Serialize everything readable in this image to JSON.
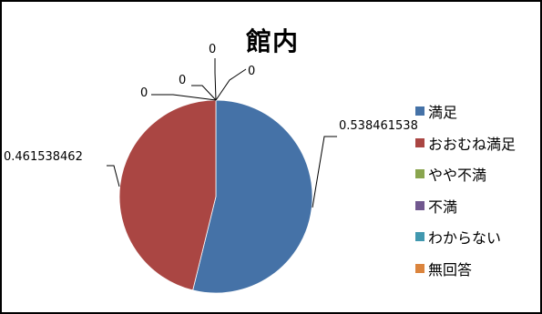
{
  "chart_data": {
    "type": "pie",
    "title": "館内",
    "categories": [
      "満足",
      "おおむね満足",
      "やや不満",
      "不満",
      "わからない",
      "無回答"
    ],
    "values": [
      0.538461538,
      0.461538462,
      0,
      0,
      0,
      0
    ],
    "data_labels": [
      "0.538461538",
      "0.461538462",
      "0",
      "0",
      "0",
      "0"
    ],
    "colors": [
      "#4572A7",
      "#AA4643",
      "#89A54E",
      "#71588F",
      "#4198AF",
      "#DB843D"
    ],
    "legend_position": "right"
  }
}
